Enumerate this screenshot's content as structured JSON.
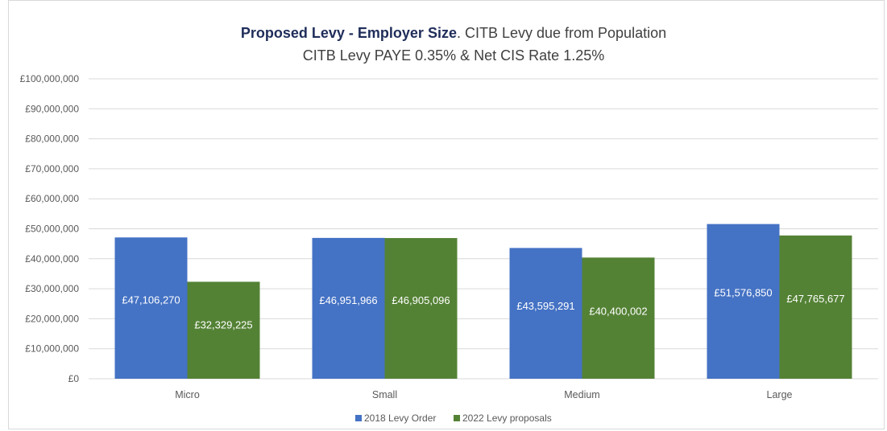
{
  "chart_data": {
    "type": "bar",
    "title_bold": "Proposed Levy - Employer Size",
    "title_rest": ". CITB Levy due from Population",
    "subtitle": "CITB Levy PAYE 0.35% & Net CIS Rate 1.25%",
    "categories": [
      "Micro",
      "Small",
      "Medium",
      "Large"
    ],
    "series": [
      {
        "name": "2018 Levy Order",
        "color": "#4472c4",
        "values": [
          47106270,
          46951966,
          43595291,
          51576850
        ],
        "labels": [
          "£47,106,270",
          "£46,951,966",
          "£43,595,291",
          "£51,576,850"
        ]
      },
      {
        "name": "2022 Levy proposals",
        "color": "#548235",
        "values": [
          32329225,
          46905096,
          40400002,
          47765677
        ],
        "labels": [
          "£32,329,225",
          "£46,905,096",
          "£40,400,002",
          "£47,765,677"
        ]
      }
    ],
    "ylim": [
      0,
      100000000
    ],
    "yticks": [
      {
        "value": 0,
        "label": "£0"
      },
      {
        "value": 10000000,
        "label": "£10,000,000"
      },
      {
        "value": 20000000,
        "label": "£20,000,000"
      },
      {
        "value": 30000000,
        "label": "£30,000,000"
      },
      {
        "value": 40000000,
        "label": "£40,000,000"
      },
      {
        "value": 50000000,
        "label": "£50,000,000"
      },
      {
        "value": 60000000,
        "label": "£60,000,000"
      },
      {
        "value": 70000000,
        "label": "£70,000,000"
      },
      {
        "value": 80000000,
        "label": "£80,000,000"
      },
      {
        "value": 90000000,
        "label": "£90,000,000"
      },
      {
        "value": 100000000,
        "label": "£100,000,000"
      }
    ],
    "grid": true,
    "legend": "bottom-center",
    "gridline_color": "#d9d9d9"
  }
}
